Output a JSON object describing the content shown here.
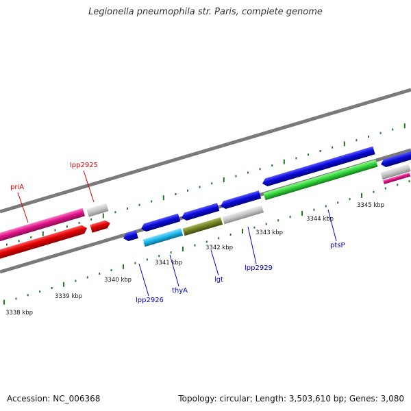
{
  "title": "Legionella pneumophila str. Paris, complete genome",
  "footer": {
    "accession": "Accession: NC_006368",
    "summary": "Topology: circular; Length: 3,503,610 bp; Genes: 3,080"
  },
  "scale_labels": [
    "3338 kbp",
    "3339 kbp",
    "3340 kbp",
    "3341 kbp",
    "3342 kbp",
    "3343 kbp",
    "3344 kbp",
    "3345 kbp"
  ],
  "gene_labels": [
    {
      "name": "priA",
      "color": "#d00000"
    },
    {
      "name": "lpp2925",
      "color": "#d00000"
    },
    {
      "name": "lpp2926",
      "color": "#0000cc"
    },
    {
      "name": "thyA",
      "color": "#0000cc"
    },
    {
      "name": "lgt",
      "color": "#0000cc"
    },
    {
      "name": "lpp2929",
      "color": "#0000cc"
    },
    {
      "name": "ptsP",
      "color": "#0000cc"
    }
  ],
  "colors": {
    "forward_cds": "#0a0ad8",
    "reverse_cds": "#e00000",
    "rna": "#e0158a",
    "tick": "#1e7a1e",
    "backbone": "#7a7a7a",
    "grey_feature": "#c4c4c4",
    "cyan_feature": "#19b4e6",
    "olive_feature": "#6e7f22",
    "green_feature": "#2fce3a"
  }
}
